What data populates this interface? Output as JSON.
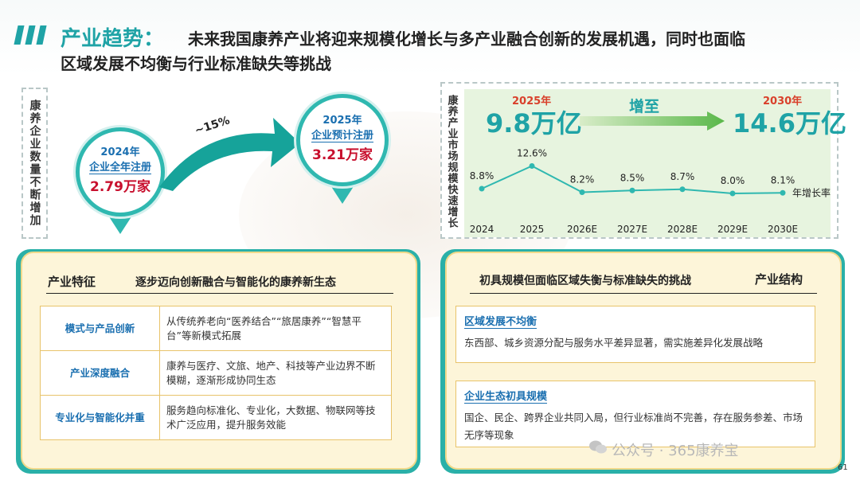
{
  "header": {
    "title": "产业趋势：",
    "subtitle_line1": "未来我国康养产业将迎来规模化增长与多产业融合创新的发展机遇，同时也面临",
    "subtitle_line2": "区域发展不均衡与行业标准缺失等挑战"
  },
  "enterprise": {
    "vertical_label": "康养企业数量不断增加",
    "pin_2024": {
      "year": "2024年",
      "desc": "企业全年注册",
      "value": "2.79万家"
    },
    "pin_2025": {
      "year": "2025年",
      "desc": "企业预计注册",
      "value": "3.21万家"
    },
    "growth_label": "~15%"
  },
  "market": {
    "vertical_label": "康养产业市场规模快速增长",
    "start_year": "2025年",
    "start_value": "9.8万亿",
    "arrow_text": "增至",
    "end_year": "2030年",
    "end_value": "14.6万亿",
    "series_name": "年增长率"
  },
  "chart_data": {
    "type": "line",
    "categories": [
      "2024",
      "2025",
      "2026E",
      "2027E",
      "2028E",
      "2029E",
      "2030E"
    ],
    "values": [
      8.8,
      12.6,
      8.2,
      8.5,
      8.7,
      8.0,
      8.1
    ],
    "value_labels": [
      "8.8%",
      "12.6%",
      "8.2%",
      "8.5%",
      "8.7%",
      "8.0%",
      "8.1%"
    ],
    "series": [
      {
        "name": "年增长率",
        "values": [
          8.8,
          12.6,
          8.2,
          8.5,
          8.7,
          8.0,
          8.1
        ]
      }
    ],
    "ylim": [
      6,
      14
    ],
    "grid": false,
    "legend": "right",
    "color": "#2fb8b0"
  },
  "features": {
    "title": "产业特征",
    "subtitle": "逐步迈向创新融合与智能化的康养新生态",
    "rows": [
      {
        "key": "模式与产品创新",
        "value": "从传统养老向“医养结合”“旅居康养”“智慧平台”等新模式拓展"
      },
      {
        "key": "产业深度融合",
        "value": "康养与医疗、文旅、地产、科技等产业边界不断模糊，逐渐形成协同生态"
      },
      {
        "key": "专业化与智能化并重",
        "value": "服务趋向标准化、专业化，大数据、物联网等技术广泛应用，提升服务效能"
      }
    ]
  },
  "structure": {
    "title": "产业结构",
    "subtitle": "初具规模但面临区域失衡与标准缺失的挑战",
    "boxes": [
      {
        "heading": "区域发展不均衡",
        "body": "东西部、城乡资源分配与服务水平差异显著，需实施差异化发展战略"
      },
      {
        "heading": "企业生态初具规模",
        "body": "国企、民企、跨界企业共同入局，但行业标准尚不完善，存在服务参差、市场无序等现象"
      }
    ]
  },
  "footer": {
    "watermark": "公众号 · 365康养宝",
    "page_number": "61"
  },
  "colors": {
    "teal": "#1fa3a6",
    "red": "#c8102e",
    "blue": "#1a6fb0",
    "cream": "#fdf5d9"
  }
}
